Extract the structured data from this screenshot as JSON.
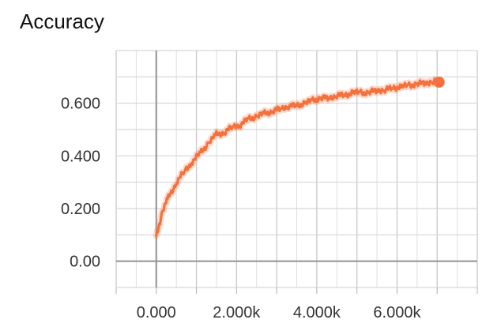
{
  "chart_data": {
    "type": "line",
    "title": "Accuracy",
    "xlabel": "",
    "ylabel": "",
    "xlim": [
      -1000,
      8000
    ],
    "ylim": [
      -0.1,
      0.8
    ],
    "grid": true,
    "x_ticks": [
      0,
      2000,
      4000,
      6000
    ],
    "x_tick_labels": [
      "0.000",
      "2.000k",
      "4.000k",
      "6.000k"
    ],
    "y_ticks": [
      0.0,
      0.2,
      0.4,
      0.6
    ],
    "y_tick_labels": [
      "0.00",
      "0.200",
      "0.400",
      "0.600"
    ],
    "series": [
      {
        "color": "#f4713d",
        "x": [
          0,
          150,
          300,
          500,
          700,
          900,
          1100,
          1300,
          1500,
          1700,
          1900,
          2100,
          2300,
          2500,
          2700,
          2900,
          3100,
          3300,
          3500,
          3700,
          3900,
          4100,
          4300,
          4500,
          4700,
          4900,
          5100,
          5300,
          5500,
          5700,
          5900,
          6100,
          6300,
          6500,
          6700,
          6900,
          7050
        ],
        "y": [
          0.09,
          0.19,
          0.24,
          0.3,
          0.34,
          0.38,
          0.41,
          0.45,
          0.48,
          0.49,
          0.51,
          0.52,
          0.54,
          0.55,
          0.56,
          0.57,
          0.58,
          0.59,
          0.59,
          0.6,
          0.61,
          0.62,
          0.62,
          0.63,
          0.63,
          0.64,
          0.64,
          0.64,
          0.65,
          0.65,
          0.66,
          0.66,
          0.67,
          0.67,
          0.68,
          0.68,
          0.68
        ]
      }
    ]
  }
}
